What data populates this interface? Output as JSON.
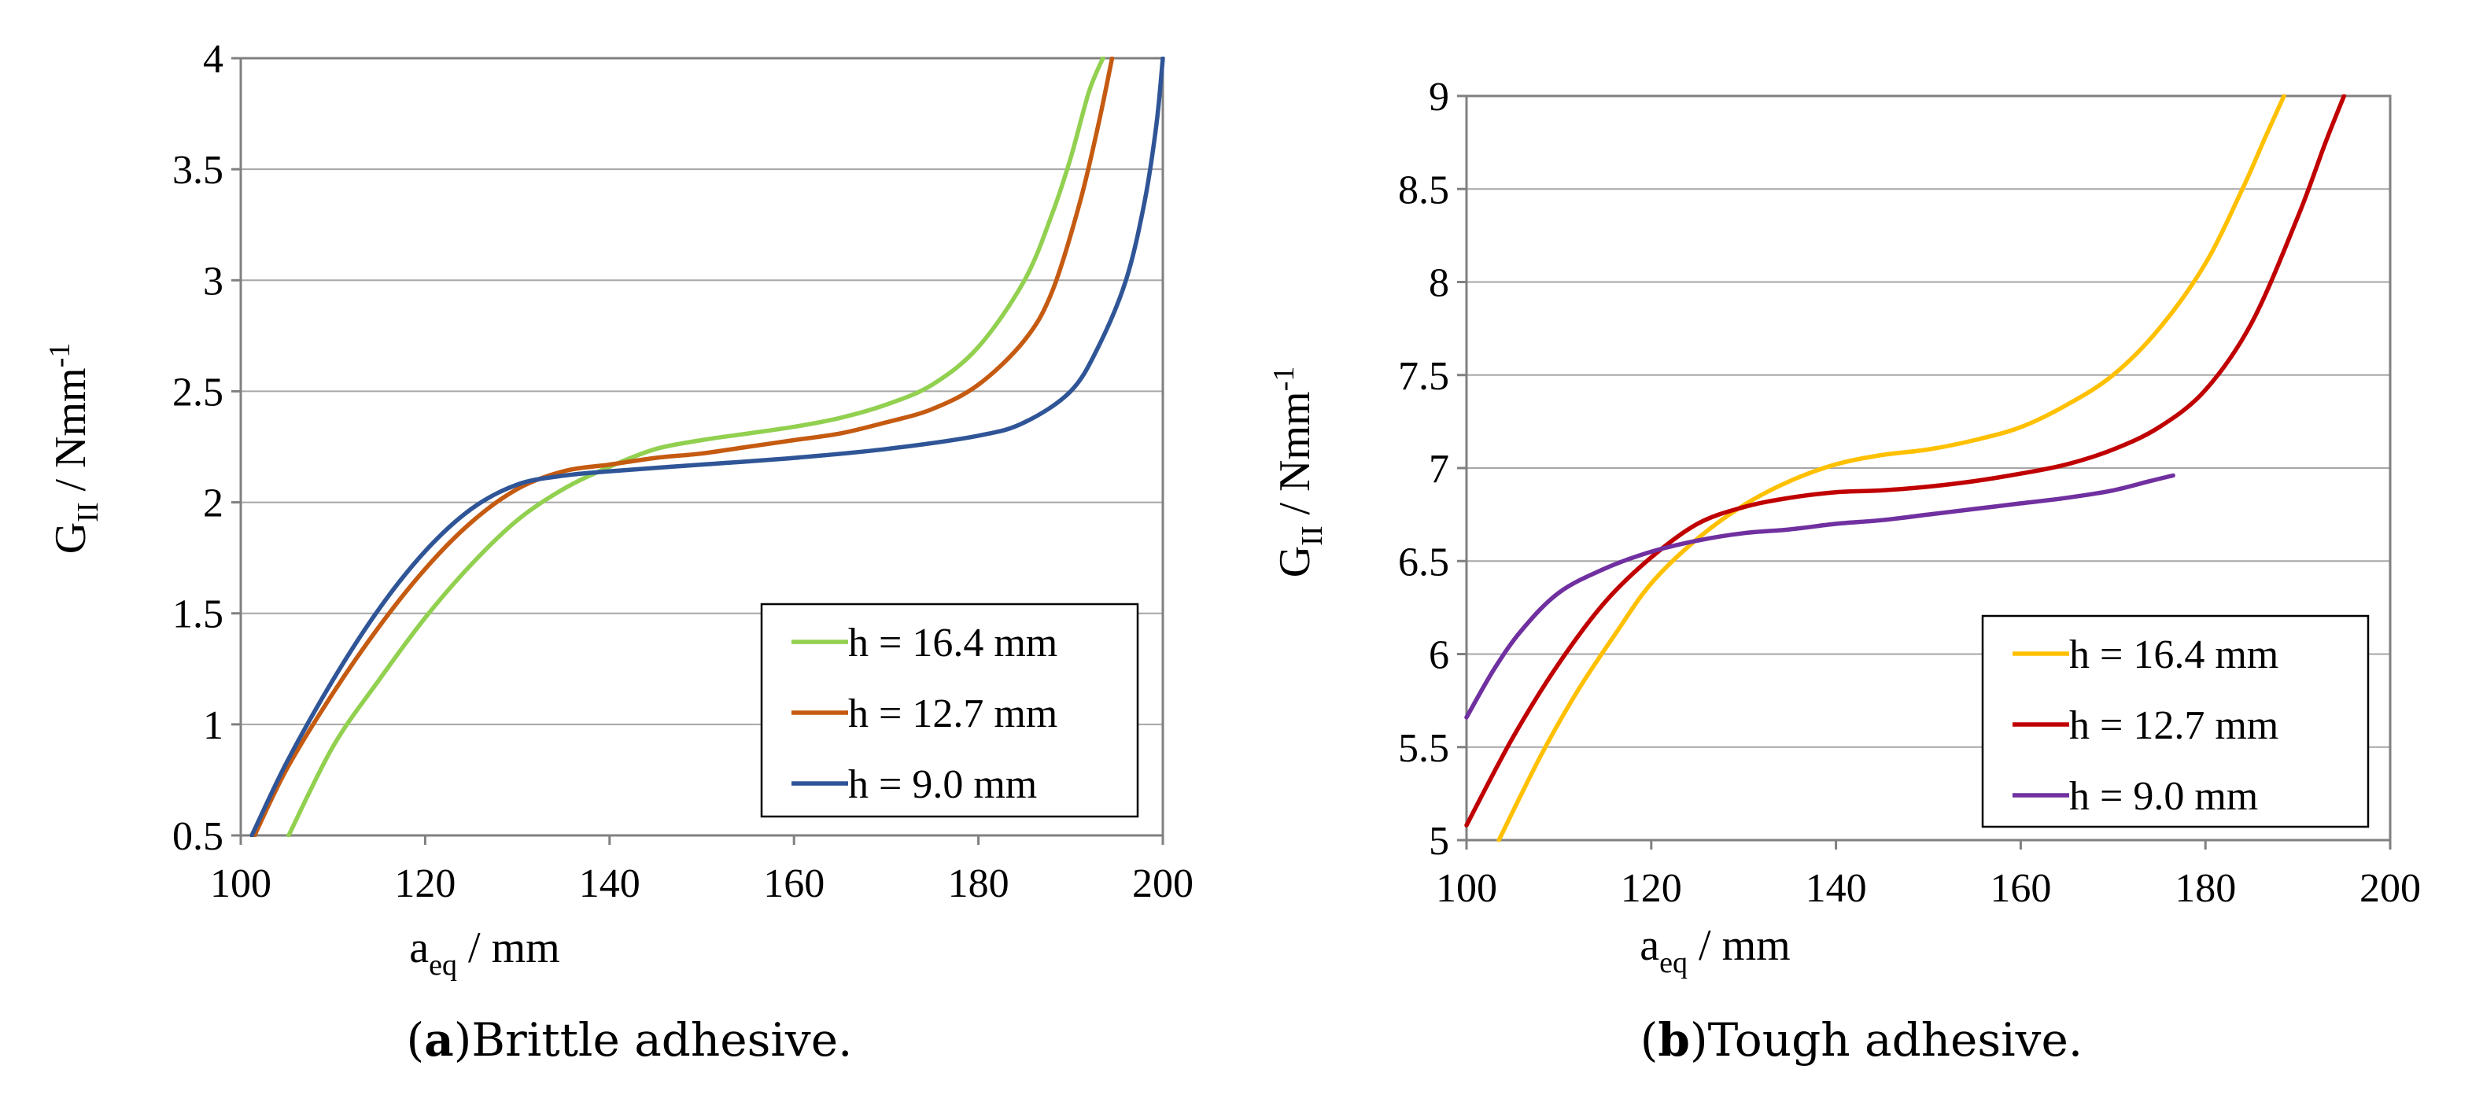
{
  "chart_data": [
    {
      "type": "line",
      "caption_label": "a",
      "caption_text": "Brittle adhesive.",
      "xlabel_main": "a",
      "xlabel_sub": "eq",
      "xlabel_unit": " / mm",
      "ylabel_main": "G",
      "ylabel_sub": "II",
      "ylabel_unit": "  / Nmm",
      "ylabel_sup": "-1",
      "xlim": [
        100,
        200
      ],
      "ylim": [
        0.5,
        4
      ],
      "xticks": [
        "100",
        "120",
        "140",
        "160",
        "180",
        "200"
      ],
      "yticks": [
        "0.5",
        "1",
        "1.5",
        "2",
        "2.5",
        "3",
        "3.5",
        "4"
      ],
      "series": [
        {
          "name": "h = 16.4 mm",
          "color": "#92D050",
          "x": [
            105.2,
            110,
            115,
            120,
            125,
            130,
            135,
            140,
            145,
            150,
            155,
            160,
            165,
            170,
            175,
            180,
            185,
            188,
            190,
            192,
            193.5
          ],
          "y": [
            0.5,
            0.9,
            1.2,
            1.48,
            1.72,
            1.92,
            2.06,
            2.16,
            2.24,
            2.28,
            2.31,
            2.34,
            2.38,
            2.44,
            2.53,
            2.7,
            3.0,
            3.3,
            3.55,
            3.85,
            4.0
          ]
        },
        {
          "name": "h = 12.7 mm",
          "color": "#C55A11",
          "x": [
            101.5,
            105,
            110,
            115,
            120,
            125,
            130,
            135,
            140,
            145,
            150,
            155,
            160,
            165,
            170,
            175,
            180,
            185,
            188,
            191,
            193,
            194.5
          ],
          "y": [
            0.5,
            0.8,
            1.14,
            1.44,
            1.7,
            1.91,
            2.06,
            2.14,
            2.17,
            2.2,
            2.22,
            2.25,
            2.28,
            2.31,
            2.36,
            2.42,
            2.53,
            2.73,
            2.95,
            3.35,
            3.7,
            4.0
          ]
        },
        {
          "name": "h = 9.0 mm",
          "color": "#2F5597",
          "x": [
            101.2,
            105,
            110,
            115,
            120,
            125,
            130,
            135,
            140,
            150,
            160,
            170,
            180,
            185,
            190,
            193,
            196,
            198,
            199.3,
            200
          ],
          "y": [
            0.5,
            0.83,
            1.2,
            1.52,
            1.78,
            1.97,
            2.08,
            2.12,
            2.14,
            2.17,
            2.2,
            2.24,
            2.3,
            2.36,
            2.5,
            2.7,
            3.0,
            3.35,
            3.7,
            4.0
          ]
        }
      ]
    },
    {
      "type": "line",
      "caption_label": "b",
      "caption_text": "Tough adhesive.",
      "xlabel_main": "a",
      "xlabel_sub": "eq",
      "xlabel_unit": " / mm",
      "ylabel_main": "G",
      "ylabel_sub": "II",
      "ylabel_unit": "  / Nmm",
      "ylabel_sup": "-1",
      "xlim": [
        100,
        200
      ],
      "ylim": [
        5,
        9
      ],
      "xticks": [
        "100",
        "120",
        "140",
        "160",
        "180",
        "200"
      ],
      "yticks": [
        "5",
        "5.5",
        "6",
        "6.5",
        "7",
        "7.5",
        "8",
        "8.5",
        "9"
      ],
      "series": [
        {
          "name": "h = 16.4 mm",
          "color": "#FFC000",
          "x": [
            103.5,
            108,
            112,
            116,
            120,
            125,
            130,
            135,
            140,
            145,
            150,
            155,
            160,
            165,
            170,
            175,
            180,
            184,
            186.5,
            188.5
          ],
          "y": [
            5.0,
            5.45,
            5.8,
            6.1,
            6.38,
            6.62,
            6.8,
            6.93,
            7.02,
            7.07,
            7.1,
            7.15,
            7.22,
            7.34,
            7.5,
            7.75,
            8.1,
            8.5,
            8.78,
            9.0
          ]
        },
        {
          "name": "h = 12.7 mm",
          "color": "#C00000",
          "x": [
            100,
            105,
            110,
            115,
            120,
            125,
            130,
            135,
            140,
            145,
            150,
            155,
            160,
            165,
            170,
            175,
            180,
            185,
            190,
            193,
            195
          ],
          "y": [
            5.08,
            5.55,
            5.95,
            6.28,
            6.52,
            6.7,
            6.79,
            6.84,
            6.87,
            6.88,
            6.9,
            6.93,
            6.97,
            7.02,
            7.1,
            7.22,
            7.42,
            7.78,
            8.35,
            8.75,
            9.0
          ]
        },
        {
          "name": "h = 9.0 mm",
          "color": "#7030A0",
          "x": [
            100,
            103,
            106,
            110,
            115,
            120,
            125,
            130,
            135,
            140,
            145,
            150,
            155,
            160,
            165,
            170,
            174,
            176.5
          ],
          "y": [
            5.66,
            5.92,
            6.13,
            6.33,
            6.46,
            6.55,
            6.61,
            6.65,
            6.67,
            6.7,
            6.72,
            6.75,
            6.78,
            6.81,
            6.84,
            6.88,
            6.93,
            6.96
          ]
        }
      ]
    }
  ]
}
